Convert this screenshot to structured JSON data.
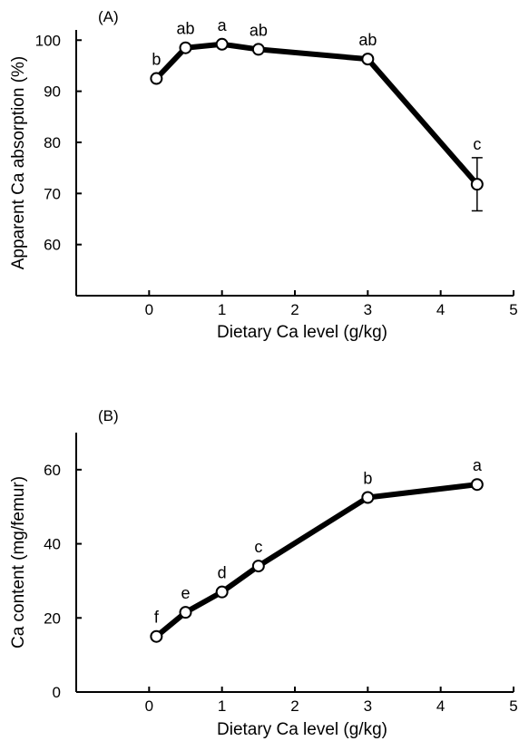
{
  "chart_data": [
    {
      "type": "line",
      "panel_label": "(A)",
      "xlabel": "Dietary Ca level (g/kg)",
      "ylabel": "Apparent Ca absorption (%)",
      "xlim": [
        -1,
        5
      ],
      "ylim": [
        50,
        102
      ],
      "xticks": [
        0,
        1,
        2,
        3,
        4,
        5
      ],
      "yticks": [
        60,
        70,
        80,
        90,
        100
      ],
      "grid": false,
      "series": [
        {
          "x": [
            0.1,
            0.5,
            1.0,
            1.5,
            3.0,
            4.5
          ],
          "y": [
            92.5,
            98.5,
            99.2,
            98.2,
            96.3,
            71.8
          ],
          "labels": [
            "b",
            "ab",
            "a",
            "ab",
            "ab",
            "c"
          ],
          "error": [
            0,
            0,
            0,
            0,
            0,
            5.2
          ]
        }
      ]
    },
    {
      "type": "line",
      "panel_label": "(B)",
      "xlabel": "Dietary Ca level (g/kg)",
      "ylabel": "Ca content (mg/femur)",
      "xlim": [
        -1,
        5
      ],
      "ylim": [
        0,
        70
      ],
      "xticks": [
        0,
        1,
        2,
        3,
        4,
        5
      ],
      "yticks": [
        0,
        20,
        40,
        60
      ],
      "grid": false,
      "series": [
        {
          "x": [
            0.1,
            0.5,
            1.0,
            1.5,
            3.0,
            4.5
          ],
          "y": [
            15.0,
            21.5,
            27.0,
            34.0,
            52.5,
            56.0
          ],
          "labels": [
            "f",
            "e",
            "d",
            "c",
            "b",
            "a"
          ],
          "error": [
            0,
            0,
            0,
            0,
            0,
            0
          ]
        }
      ]
    }
  ]
}
